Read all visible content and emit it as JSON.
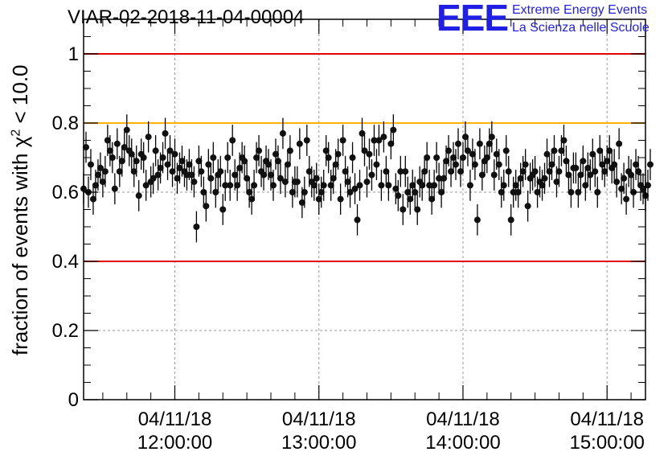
{
  "chart_data": {
    "type": "scatter",
    "title": "VIAR-02-2018-11-04-00004",
    "ylabel_text": "fraction of events with",
    "ylabel_chi": "χ",
    "ylabel_sup": "2",
    "ylabel_rest": "< 10.0",
    "xlim": [
      "11:22:00",
      "15:16:00"
    ],
    "ylim": [
      0,
      1.1
    ],
    "y_ticks": [
      "0",
      "0.2",
      "0.4",
      "0.6",
      "0.8",
      "1"
    ],
    "y_tick_values": [
      0,
      0.2,
      0.4,
      0.6,
      0.8,
      1.0
    ],
    "x_ticks": [
      {
        "date": "04/11/18",
        "time": "12:00:00",
        "minute": 720
      },
      {
        "date": "04/11/18",
        "time": "13:00:00",
        "minute": 780
      },
      {
        "date": "04/11/18",
        "time": "14:00:00",
        "minute": 840
      },
      {
        "date": "04/11/18",
        "time": "15:00:00",
        "minute": 900
      }
    ],
    "reference_lines": [
      {
        "y": 1.0,
        "color": "#e60000"
      },
      {
        "y": 0.8,
        "color": "#ffb300"
      },
      {
        "y": 0.4,
        "color": "#e60000"
      }
    ],
    "grid": true,
    "error_bar": 0.045,
    "points": [
      [
        682,
        0.61
      ],
      [
        683,
        0.73
      ],
      [
        684,
        0.6
      ],
      [
        685,
        0.68
      ],
      [
        686,
        0.58
      ],
      [
        687,
        0.62
      ],
      [
        688,
        0.65
      ],
      [
        689,
        0.67
      ],
      [
        690,
        0.63
      ],
      [
        691,
        0.66
      ],
      [
        692,
        0.75
      ],
      [
        693,
        0.72
      ],
      [
        694,
        0.7
      ],
      [
        695,
        0.61
      ],
      [
        696,
        0.74
      ],
      [
        697,
        0.66
      ],
      [
        698,
        0.69
      ],
      [
        699,
        0.73
      ],
      [
        700,
        0.78
      ],
      [
        701,
        0.72
      ],
      [
        702,
        0.71
      ],
      [
        703,
        0.66
      ],
      [
        704,
        0.69
      ],
      [
        705,
        0.59
      ],
      [
        706,
        0.71
      ],
      [
        707,
        0.7
      ],
      [
        708,
        0.62
      ],
      [
        709,
        0.76
      ],
      [
        710,
        0.63
      ],
      [
        711,
        0.64
      ],
      [
        712,
        0.72
      ],
      [
        713,
        0.65
      ],
      [
        714,
        0.67
      ],
      [
        715,
        0.7
      ],
      [
        716,
        0.77
      ],
      [
        717,
        0.68
      ],
      [
        718,
        0.72
      ],
      [
        719,
        0.66
      ],
      [
        720,
        0.71
      ],
      [
        721,
        0.64
      ],
      [
        722,
        0.67
      ],
      [
        723,
        0.69
      ],
      [
        724,
        0.66
      ],
      [
        725,
        0.65
      ],
      [
        726,
        0.68
      ],
      [
        727,
        0.65
      ],
      [
        728,
        0.63
      ],
      [
        729,
        0.5
      ],
      [
        730,
        0.69
      ],
      [
        731,
        0.66
      ],
      [
        732,
        0.6
      ],
      [
        733,
        0.56
      ],
      [
        734,
        0.68
      ],
      [
        735,
        0.64
      ],
      [
        736,
        0.7
      ],
      [
        737,
        0.6
      ],
      [
        738,
        0.65
      ],
      [
        739,
        0.66
      ],
      [
        740,
        0.55
      ],
      [
        741,
        0.62
      ],
      [
        742,
        0.7
      ],
      [
        743,
        0.62
      ],
      [
        744,
        0.75
      ],
      [
        745,
        0.65
      ],
      [
        746,
        0.62
      ],
      [
        747,
        0.67
      ],
      [
        748,
        0.7
      ],
      [
        749,
        0.69
      ],
      [
        750,
        0.64
      ],
      [
        751,
        0.6
      ],
      [
        752,
        0.58
      ],
      [
        753,
        0.62
      ],
      [
        754,
        0.7
      ],
      [
        755,
        0.72
      ],
      [
        756,
        0.66
      ],
      [
        757,
        0.65
      ],
      [
        758,
        0.69
      ],
      [
        759,
        0.68
      ],
      [
        760,
        0.65
      ],
      [
        761,
        0.62
      ],
      [
        762,
        0.71
      ],
      [
        763,
        0.69
      ],
      [
        764,
        0.64
      ],
      [
        765,
        0.77
      ],
      [
        766,
        0.63
      ],
      [
        767,
        0.68
      ],
      [
        768,
        0.72
      ],
      [
        769,
        0.6
      ],
      [
        770,
        0.63
      ],
      [
        771,
        0.63
      ],
      [
        772,
        0.74
      ],
      [
        773,
        0.57
      ],
      [
        774,
        0.6
      ],
      [
        775,
        0.75
      ],
      [
        776,
        0.66
      ],
      [
        777,
        0.63
      ],
      [
        778,
        0.62
      ],
      [
        779,
        0.64
      ],
      [
        780,
        0.58
      ],
      [
        781,
        0.6
      ],
      [
        782,
        0.62
      ],
      [
        783,
        0.72
      ],
      [
        784,
        0.7
      ],
      [
        785,
        0.62
      ],
      [
        786,
        0.64
      ],
      [
        787,
        0.68
      ],
      [
        788,
        0.71
      ],
      [
        789,
        0.58
      ],
      [
        790,
        0.75
      ],
      [
        791,
        0.66
      ],
      [
        792,
        0.63
      ],
      [
        793,
        0.6
      ],
      [
        794,
        0.7
      ],
      [
        795,
        0.61
      ],
      [
        796,
        0.52
      ],
      [
        797,
        0.62
      ],
      [
        798,
        0.77
      ],
      [
        799,
        0.72
      ],
      [
        800,
        0.63
      ],
      [
        801,
        0.71
      ],
      [
        802,
        0.65
      ],
      [
        803,
        0.75
      ],
      [
        804,
        0.68
      ],
      [
        805,
        0.75
      ],
      [
        806,
        0.62
      ],
      [
        807,
        0.76
      ],
      [
        808,
        0.66
      ],
      [
        809,
        0.62
      ],
      [
        810,
        0.74
      ],
      [
        811,
        0.78
      ],
      [
        812,
        0.61
      ],
      [
        813,
        0.59
      ],
      [
        814,
        0.66
      ],
      [
        815,
        0.55
      ],
      [
        816,
        0.66
      ],
      [
        817,
        0.6
      ],
      [
        818,
        0.58
      ],
      [
        819,
        0.62
      ],
      [
        820,
        0.6
      ],
      [
        821,
        0.55
      ],
      [
        822,
        0.63
      ],
      [
        823,
        0.62
      ],
      [
        824,
        0.66
      ],
      [
        825,
        0.7
      ],
      [
        826,
        0.62
      ],
      [
        827,
        0.58
      ],
      [
        828,
        0.62
      ],
      [
        829,
        0.7
      ],
      [
        830,
        0.64
      ],
      [
        831,
        0.6
      ],
      [
        832,
        0.64
      ],
      [
        833,
        0.69
      ],
      [
        834,
        0.72
      ],
      [
        835,
        0.66
      ],
      [
        836,
        0.7
      ],
      [
        837,
        0.68
      ],
      [
        838,
        0.74
      ],
      [
        839,
        0.66
      ],
      [
        840,
        0.7
      ],
      [
        841,
        0.76
      ],
      [
        842,
        0.72
      ],
      [
        843,
        0.62
      ],
      [
        844,
        0.71
      ],
      [
        845,
        0.68
      ],
      [
        846,
        0.52
      ],
      [
        847,
        0.74
      ],
      [
        848,
        0.65
      ],
      [
        849,
        0.69
      ],
      [
        850,
        0.7
      ],
      [
        851,
        0.74
      ],
      [
        852,
        0.76
      ],
      [
        853,
        0.65
      ],
      [
        854,
        0.71
      ],
      [
        855,
        0.68
      ],
      [
        856,
        0.6
      ],
      [
        857,
        0.62
      ],
      [
        858,
        0.72
      ],
      [
        859,
        0.66
      ],
      [
        860,
        0.52
      ],
      [
        861,
        0.6
      ],
      [
        862,
        0.62
      ],
      [
        863,
        0.6
      ],
      [
        864,
        0.64
      ],
      [
        865,
        0.66
      ],
      [
        866,
        0.68
      ],
      [
        867,
        0.56
      ],
      [
        868,
        0.64
      ],
      [
        869,
        0.65
      ],
      [
        870,
        0.66
      ],
      [
        871,
        0.6
      ],
      [
        872,
        0.63
      ],
      [
        873,
        0.62
      ],
      [
        874,
        0.64
      ],
      [
        875,
        0.71
      ],
      [
        876,
        0.66
      ],
      [
        877,
        0.68
      ],
      [
        878,
        0.72
      ],
      [
        879,
        0.63
      ],
      [
        880,
        0.66
      ],
      [
        881,
        0.72
      ],
      [
        882,
        0.75
      ],
      [
        883,
        0.69
      ],
      [
        884,
        0.65
      ],
      [
        885,
        0.6
      ],
      [
        886,
        0.67
      ],
      [
        887,
        0.67
      ],
      [
        888,
        0.6
      ],
      [
        889,
        0.65
      ],
      [
        890,
        0.69
      ],
      [
        891,
        0.62
      ],
      [
        892,
        0.67
      ],
      [
        893,
        0.65
      ],
      [
        894,
        0.71
      ],
      [
        895,
        0.66
      ],
      [
        896,
        0.6
      ],
      [
        897,
        0.72
      ],
      [
        898,
        0.68
      ],
      [
        899,
        0.66
      ],
      [
        900,
        0.69
      ],
      [
        901,
        0.72
      ],
      [
        902,
        0.67
      ],
      [
        903,
        0.68
      ],
      [
        904,
        0.63
      ],
      [
        905,
        0.74
      ],
      [
        906,
        0.61
      ],
      [
        907,
        0.64
      ],
      [
        908,
        0.58
      ],
      [
        909,
        0.66
      ],
      [
        910,
        0.65
      ],
      [
        911,
        0.6
      ],
      [
        912,
        0.68
      ],
      [
        913,
        0.66
      ],
      [
        914,
        0.62
      ],
      [
        915,
        0.61
      ],
      [
        916,
        0.59
      ],
      [
        917,
        0.62
      ],
      [
        918,
        0.68
      ]
    ]
  },
  "logo": {
    "mark": "EEE",
    "line1": "Extreme Energy Events",
    "line2": "La Scienza nelle Scuole"
  }
}
